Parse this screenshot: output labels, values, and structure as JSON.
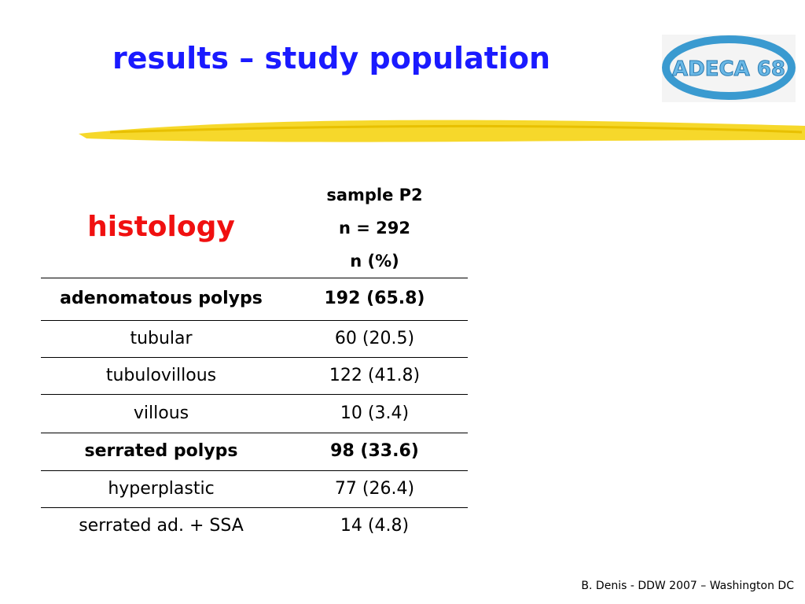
{
  "header": {
    "title": "results – study population",
    "logo": "ADECA 68"
  },
  "table": {
    "row_header": "histology",
    "column_header": [
      "sample P2",
      "n = 292",
      "n (%)"
    ],
    "rows": [
      {
        "cells": [
          "adenomatous polyps",
          "192 (65.8)"
        ],
        "bold": true
      },
      {
        "cells": [
          "tubular",
          "60 (20.5)"
        ],
        "bold": false
      },
      {
        "cells": [
          "tubulovillous",
          "122 (41.8)"
        ],
        "bold": false
      },
      {
        "cells": [
          "villous",
          "10 (3.4)"
        ],
        "bold": false
      },
      {
        "cells": [
          "serrated polyps",
          "98 (33.6)"
        ],
        "bold": true
      },
      {
        "cells": [
          "hyperplastic",
          "77 (26.4)"
        ],
        "bold": false
      },
      {
        "cells": [
          "serrated ad. + SSA",
          "14 (4.8)"
        ],
        "bold": false
      }
    ]
  },
  "footer": "B. Denis - DDW 2007 – Washington DC"
}
